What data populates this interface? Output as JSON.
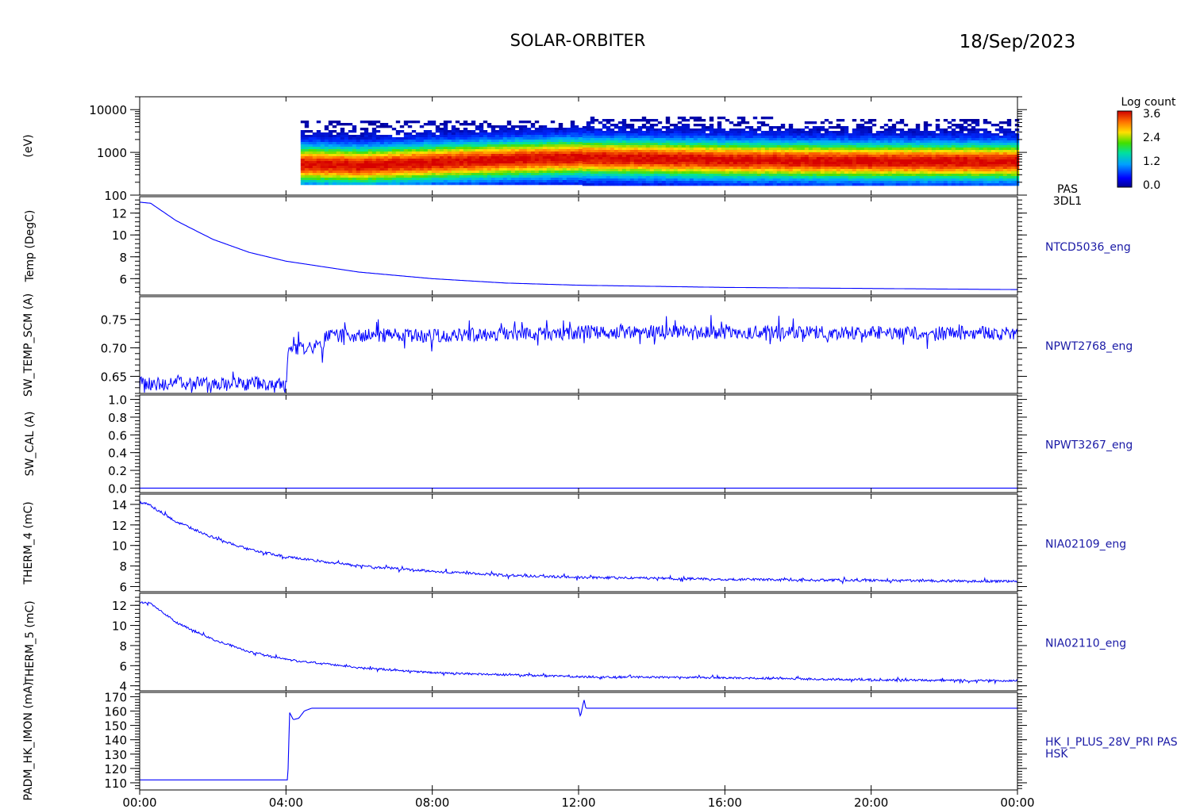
{
  "header": {
    "title": "SOLAR-ORBITER",
    "date": "18/Sep/2023"
  },
  "colorbar": {
    "title": "Log count",
    "ticks": [
      "3.6",
      "2.4",
      "1.2",
      "0.0"
    ]
  },
  "x_axis": {
    "ticks": [
      "00:00",
      "04:00",
      "08:00",
      "12:00",
      "16:00",
      "20:00",
      "00:00"
    ]
  },
  "line_color": "#0000ff",
  "chart_data": [
    {
      "type": "heatmap",
      "ylabel": "(eV)",
      "y_scale": "log",
      "ylim": [
        100,
        20000
      ],
      "y_ticks": [
        "10000",
        "1000",
        "100"
      ],
      "side_label": [
        "PAS",
        "3DL1"
      ],
      "data_start_hour": 4.4,
      "peak_energy_ev": [
        [
          4.4,
          560
        ],
        [
          6.0,
          520
        ],
        [
          8.0,
          620
        ],
        [
          10.0,
          720
        ],
        [
          12.0,
          800
        ],
        [
          14.0,
          760
        ],
        [
          16.0,
          700
        ],
        [
          20.0,
          650
        ],
        [
          24.0,
          640
        ]
      ],
      "colorscale": "rainbow",
      "zlim": [
        0.0,
        3.6
      ]
    },
    {
      "type": "line",
      "ylabel": "Temp (DegC)",
      "side_label": "NTCD5036_eng",
      "ylim": [
        4.5,
        13.5
      ],
      "y_ticks": [
        "12",
        "10",
        "8",
        "6"
      ],
      "x": [
        0,
        0.3,
        1,
        2,
        3,
        4,
        6,
        8,
        10,
        12,
        16,
        20,
        24
      ],
      "y": [
        13.0,
        12.9,
        11.3,
        9.6,
        8.4,
        7.6,
        6.6,
        6.0,
        5.6,
        5.4,
        5.2,
        5.1,
        5.0
      ],
      "noise": 0
    },
    {
      "type": "line",
      "ylabel": "SW_TEMP_SCM (A)",
      "side_label": "NPWT2768_eng",
      "ylim": [
        0.62,
        0.79
      ],
      "y_ticks": [
        "0.75",
        "0.70",
        "0.65"
      ],
      "x": [
        0,
        4.0,
        4.05,
        4.3,
        5.0,
        5.1,
        7,
        8,
        12,
        12.1,
        24
      ],
      "y": [
        0.637,
        0.637,
        0.69,
        0.698,
        0.703,
        0.722,
        0.722,
        0.722,
        0.726,
        0.728,
        0.726
      ],
      "noise": 0.012
    },
    {
      "type": "line",
      "ylabel": "SW_CAL (A)",
      "side_label": "NPWT3267_eng",
      "ylim": [
        -0.05,
        1.05
      ],
      "y_ticks": [
        "1.0",
        "0.8",
        "0.6",
        "0.4",
        "0.2",
        "0.0"
      ],
      "x": [
        0,
        24
      ],
      "y": [
        0.0,
        0.0
      ],
      "noise": 0
    },
    {
      "type": "line",
      "ylabel": "THERM_4 (mC)",
      "side_label": "NIA02109_eng",
      "ylim": [
        5.5,
        15.0
      ],
      "y_ticks": [
        "14",
        "12",
        "10",
        "8",
        "6"
      ],
      "x": [
        0,
        0.2,
        1,
        2,
        3,
        4,
        6,
        8,
        10,
        12,
        16,
        20,
        24
      ],
      "y": [
        14.2,
        14.1,
        12.3,
        10.8,
        9.6,
        8.9,
        8.0,
        7.5,
        7.1,
        6.9,
        6.7,
        6.6,
        6.5
      ],
      "noise": 0.12
    },
    {
      "type": "line",
      "ylabel": "THERM_5 (mC)",
      "side_label": "NIA02110_eng",
      "ylim": [
        3.5,
        13.2
      ],
      "y_ticks": [
        "12",
        "10",
        "8",
        "6",
        "4"
      ],
      "x": [
        0,
        0.3,
        1,
        2,
        3,
        4,
        6,
        8,
        10,
        12,
        16,
        20,
        24
      ],
      "y": [
        12.3,
        12.2,
        10.3,
        8.6,
        7.4,
        6.6,
        5.8,
        5.3,
        5.1,
        4.9,
        4.8,
        4.6,
        4.5
      ],
      "noise": 0.1
    },
    {
      "type": "line",
      "ylabel": "PADM_HK_IMON (mA)",
      "side_label": [
        "HK_I_PLUS_28V_PRI PAS",
        "HSK"
      ],
      "ylim": [
        105,
        173
      ],
      "y_ticks": [
        "170",
        "160",
        "150",
        "140",
        "130",
        "120",
        "110"
      ],
      "x": [
        0,
        4.05,
        4.1,
        4.2,
        4.35,
        4.5,
        4.7,
        12.0,
        12.05,
        12.15,
        12.2,
        24
      ],
      "y": [
        112,
        112,
        159,
        154,
        155,
        160,
        162,
        162,
        156,
        168,
        162,
        162
      ],
      "noise": 0
    }
  ]
}
